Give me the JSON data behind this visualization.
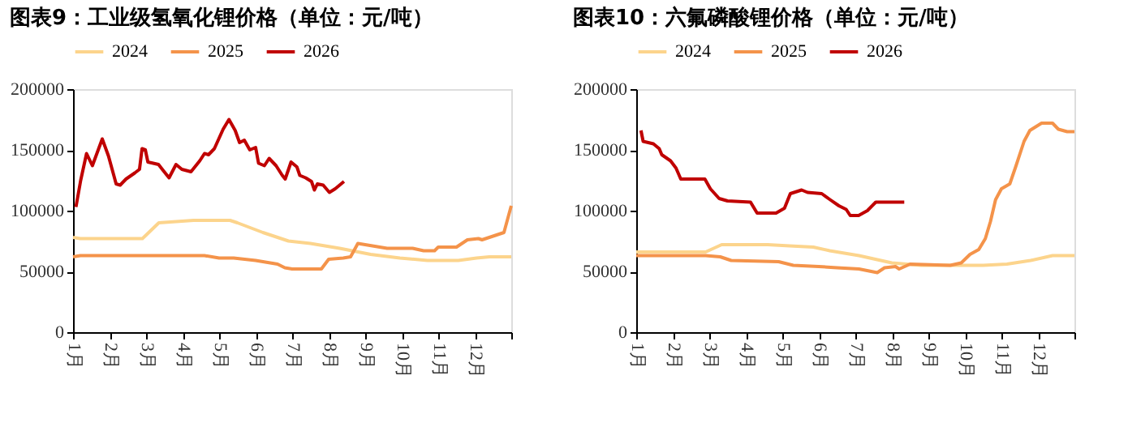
{
  "chart_data": [
    {
      "type": "line",
      "title": "图表9：工业级氢氧化锂价格（单位：元/吨）",
      "legend": "top",
      "grid": false,
      "marker": "none",
      "line_style": "solid",
      "xlim": [
        1,
        13
      ],
      "xticks": [
        {
          "value": 1,
          "label": "1月"
        },
        {
          "value": 2,
          "label": "2月"
        },
        {
          "value": 3,
          "label": "3月"
        },
        {
          "value": 4,
          "label": "4月"
        },
        {
          "value": 5,
          "label": "5月"
        },
        {
          "value": 6,
          "label": "6月"
        },
        {
          "value": 7,
          "label": "7月"
        },
        {
          "value": 8,
          "label": "8月"
        },
        {
          "value": 9,
          "label": "9月"
        },
        {
          "value": 10,
          "label": "10月"
        },
        {
          "value": 11,
          "label": "11月"
        },
        {
          "value": 12,
          "label": "12月"
        },
        {
          "value": 13,
          "label": null
        }
      ],
      "ylim": [
        0,
        200000
      ],
      "yticks": [
        0,
        50000,
        100000,
        150000,
        200000
      ],
      "series": [
        {
          "name": "2024",
          "color": "#fcd48c",
          "x": [
            1,
            1.2,
            2.9,
            3.35,
            4.3,
            5.3,
            5.5,
            6.2,
            6.9,
            7.5,
            8.3,
            9.15,
            9.95,
            10.7,
            11.55,
            12.05,
            12.4,
            13
          ],
          "values": [
            78000,
            77000,
            77000,
            90000,
            92000,
            92000,
            90000,
            82000,
            75000,
            73000,
            69000,
            64000,
            61000,
            59000,
            59000,
            61000,
            62000,
            62000
          ]
        },
        {
          "name": "2025",
          "color": "#f4934a",
          "x": [
            1,
            1.2,
            4.6,
            5.0,
            5.4,
            6.0,
            6.6,
            6.8,
            7.0,
            7.6,
            7.8,
            8.0,
            8.4,
            8.6,
            8.8,
            9.2,
            9.6,
            10.3,
            10.6,
            10.9,
            11.0,
            11.5,
            11.8,
            12.1,
            12.2,
            12.6,
            12.8,
            13
          ],
          "values": [
            62000,
            63000,
            63000,
            61000,
            61000,
            59000,
            56000,
            53000,
            52000,
            52000,
            52000,
            60000,
            61000,
            62000,
            73000,
            71000,
            69000,
            69000,
            67000,
            67000,
            70000,
            70000,
            76000,
            77000,
            76000,
            80000,
            82000,
            104000
          ]
        },
        {
          "name": "2026",
          "color": "#c00000",
          "x": [
            1.08,
            1.21,
            1.37,
            1.53,
            1.8,
            1.97,
            2.08,
            2.18,
            2.29,
            2.45,
            2.69,
            2.82,
            2.89,
            2.98,
            3.05,
            3.34,
            3.47,
            3.63,
            3.82,
            3.98,
            4.23,
            4.47,
            4.6,
            4.71,
            4.87,
            5.11,
            5.27,
            5.44,
            5.56,
            5.69,
            5.84,
            6.0,
            6.08,
            6.24,
            6.37,
            6.56,
            6.73,
            6.81,
            6.97,
            7.13,
            7.21,
            7.37,
            7.53,
            7.61,
            7.69,
            7.85,
            8.02,
            8.18,
            8.42
          ],
          "values": [
            103000,
            125000,
            147000,
            137000,
            159000,
            145000,
            133000,
            122000,
            121000,
            126000,
            131000,
            134000,
            151000,
            150000,
            140000,
            138000,
            133000,
            127000,
            138000,
            134000,
            132000,
            141000,
            147000,
            146000,
            151000,
            167000,
            175000,
            166000,
            156000,
            158000,
            150000,
            152000,
            139000,
            137000,
            143000,
            137000,
            129000,
            126000,
            140000,
            136000,
            129000,
            127000,
            124000,
            117000,
            122000,
            121000,
            115000,
            118000,
            124000
          ]
        }
      ]
    },
    {
      "type": "line",
      "title": "图表10：六氟磷酸锂价格（单位：元/吨）",
      "legend": "top",
      "grid": false,
      "marker": "none",
      "line_style": "solid",
      "xlim": [
        1,
        13
      ],
      "xticks": [
        {
          "value": 1,
          "label": "1月"
        },
        {
          "value": 2,
          "label": "2月"
        },
        {
          "value": 3,
          "label": "3月"
        },
        {
          "value": 4,
          "label": "4月"
        },
        {
          "value": 5,
          "label": "5月"
        },
        {
          "value": 6,
          "label": "6月"
        },
        {
          "value": 7,
          "label": "7月"
        },
        {
          "value": 8,
          "label": "8月"
        },
        {
          "value": 9,
          "label": "9月"
        },
        {
          "value": 10,
          "label": "10月"
        },
        {
          "value": 11,
          "label": "11月"
        },
        {
          "value": 12,
          "label": "12月"
        },
        {
          "value": 13,
          "label": null
        }
      ],
      "ylim": [
        0,
        200000
      ],
      "yticks": [
        0,
        50000,
        100000,
        150000,
        200000
      ],
      "series": [
        {
          "name": "2024",
          "color": "#fcd48c",
          "x": [
            1,
            2.9,
            3.34,
            4.6,
            5.2,
            5.85,
            6.3,
            7.1,
            7.55,
            8.0,
            8.8,
            10.5,
            11.15,
            11.8,
            12.4,
            13
          ],
          "values": [
            66000,
            66000,
            72000,
            72000,
            71000,
            70000,
            67000,
            63000,
            60000,
            57000,
            55000,
            55000,
            56000,
            59000,
            63000,
            63000
          ]
        },
        {
          "name": "2025",
          "color": "#f4934a",
          "x": [
            1,
            2.9,
            3.3,
            3.6,
            4.9,
            5.3,
            6.0,
            6.5,
            7.1,
            7.6,
            7.8,
            8.1,
            8.2,
            8.5,
            9.6,
            9.9,
            10.14,
            10.38,
            10.56,
            10.7,
            10.84,
            11.0,
            11.23,
            11.39,
            11.62,
            11.78,
            12.1,
            12.4,
            12.56,
            12.8,
            13
          ],
          "values": [
            63000,
            63000,
            62000,
            59000,
            58000,
            55000,
            54000,
            53000,
            52000,
            49000,
            53000,
            54000,
            52000,
            56000,
            55000,
            57000,
            64000,
            68000,
            77000,
            91000,
            109000,
            118000,
            122000,
            136000,
            157000,
            166000,
            172000,
            172000,
            167000,
            165000,
            165000
          ]
        },
        {
          "name": "2026",
          "color": "#c00000",
          "x": [
            1.13,
            1.19,
            1.47,
            1.63,
            1.7,
            1.94,
            2.09,
            2.22,
            2.88,
            3.03,
            3.27,
            3.5,
            4.13,
            4.31,
            4.83,
            5.06,
            5.22,
            5.53,
            5.69,
            6.08,
            6.31,
            6.55,
            6.75,
            6.86,
            7.09,
            7.33,
            7.56,
            8.03,
            8.34
          ],
          "values": [
            166000,
            157000,
            155000,
            151000,
            146000,
            141000,
            135000,
            126000,
            126000,
            118000,
            110000,
            108000,
            107000,
            98000,
            98000,
            102000,
            114000,
            117000,
            115000,
            114000,
            109000,
            104000,
            101000,
            96000,
            96000,
            100000,
            107000,
            107000,
            107000
          ]
        }
      ]
    }
  ]
}
